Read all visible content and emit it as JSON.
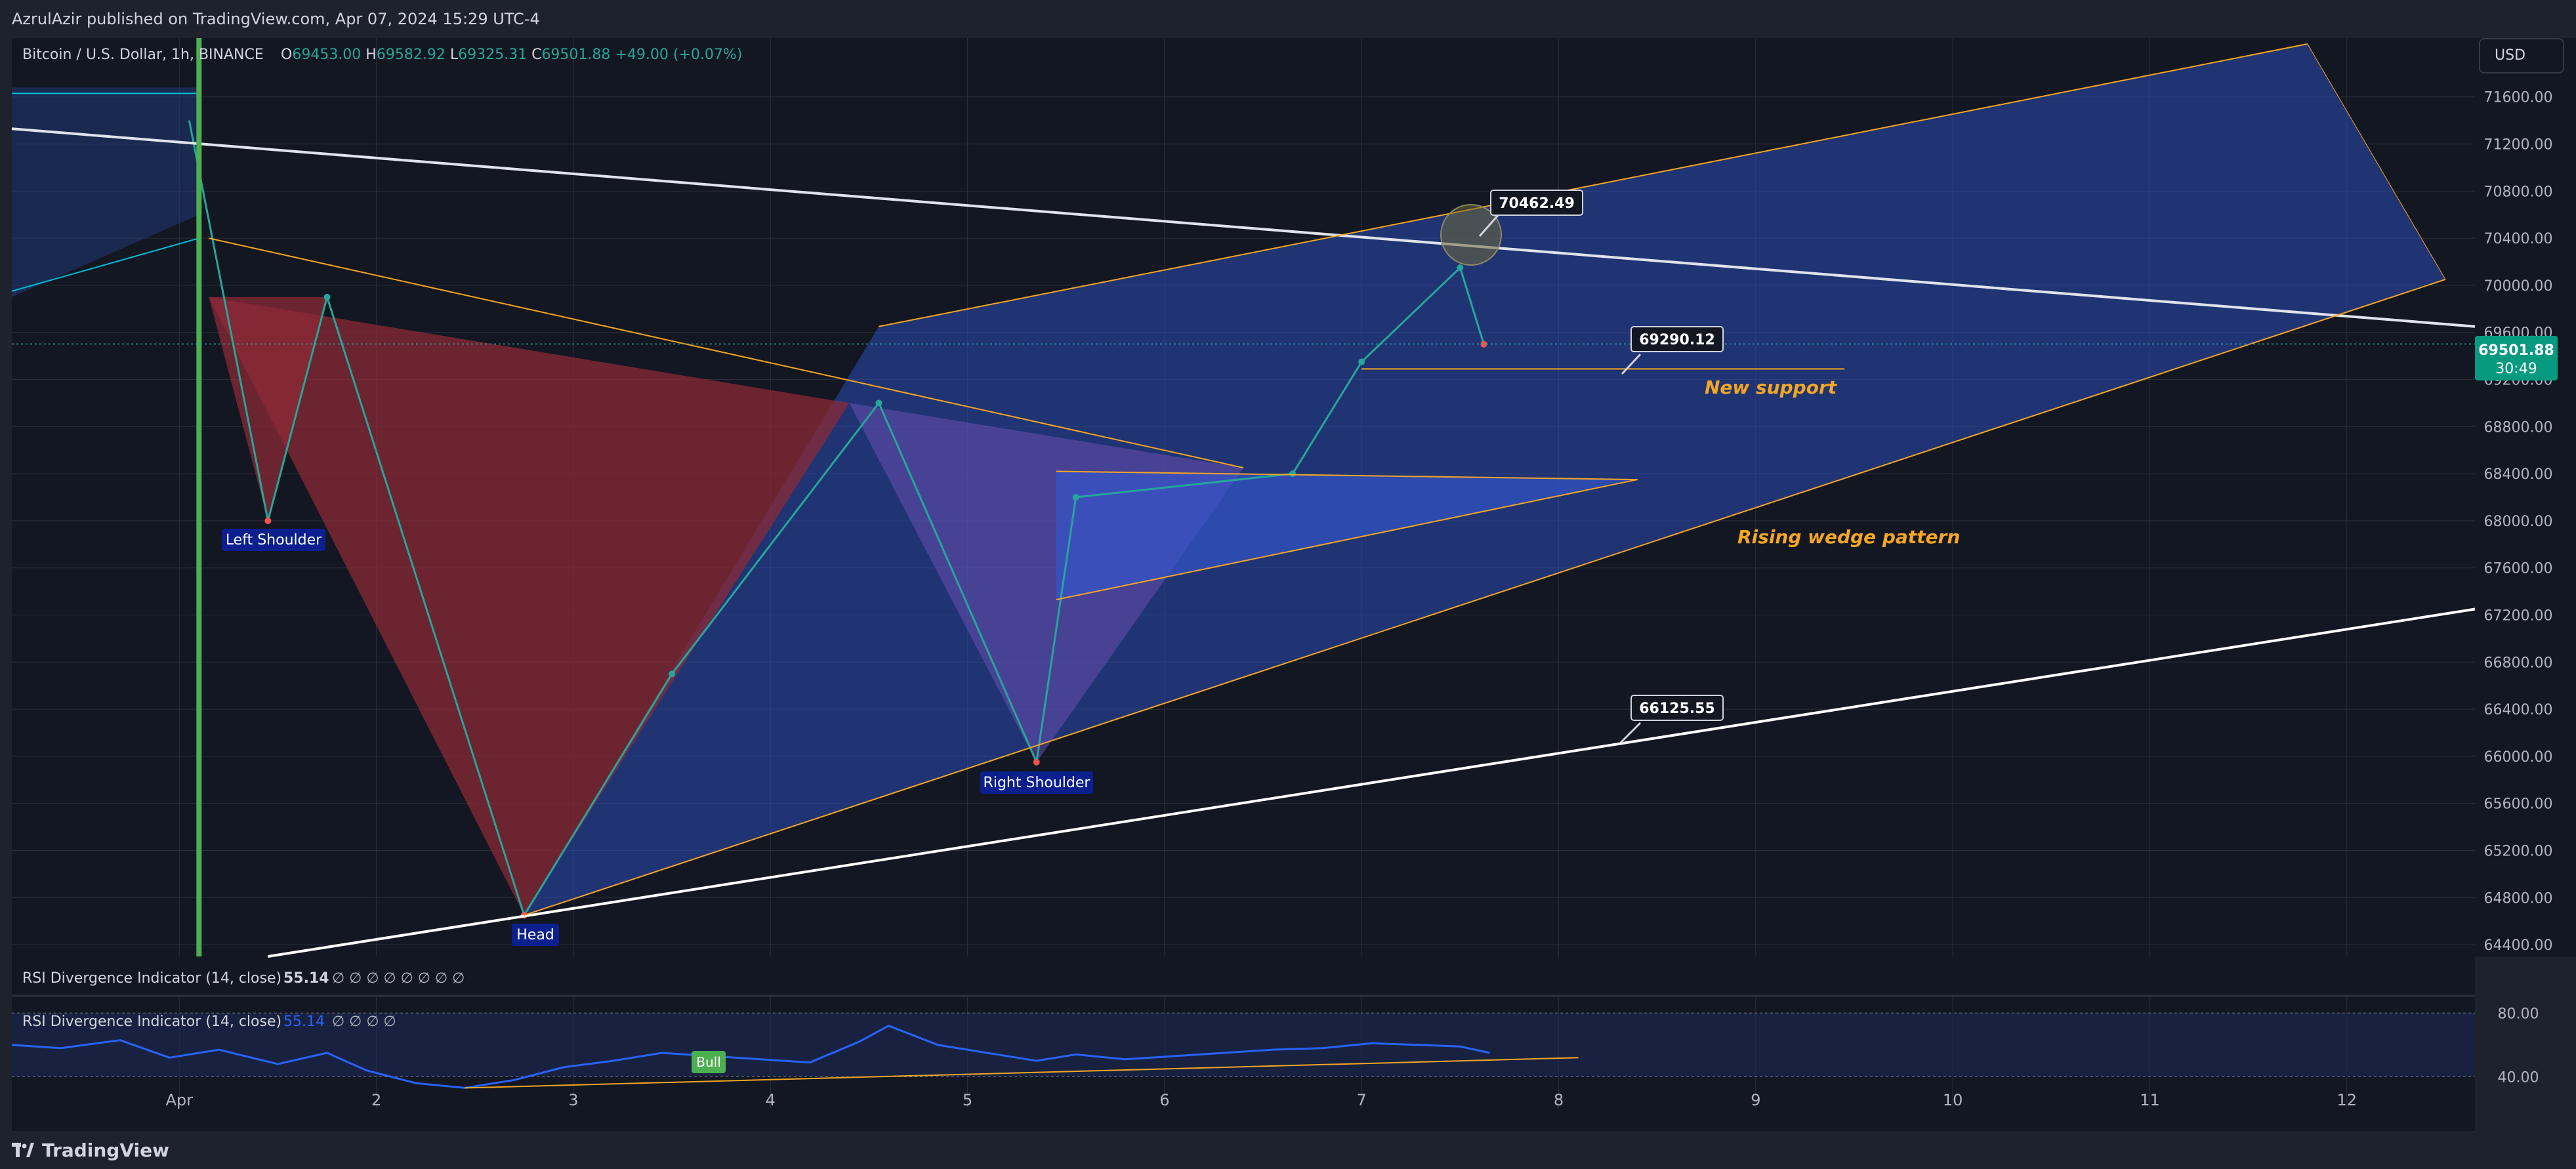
{
  "header": {
    "published_text": "AzrulAzir published on TradingView.com, Apr 07, 2024 15:29 UTC-4"
  },
  "symbol": {
    "title": "Bitcoin / U.S. Dollar, 1h, BINANCE",
    "open_label": "O",
    "open": "69453.00",
    "high_label": "H",
    "high": "69582.92",
    "low_label": "L",
    "low": "69325.31",
    "close_label": "C",
    "close": "69501.88",
    "change": "+49.00 (+0.07%)"
  },
  "currency_button": "USD",
  "price_tag": {
    "price": "69501.88",
    "countdown": "30:49"
  },
  "colors": {
    "background": "#131722",
    "frame": "#1e222d",
    "grid": "#2a2e39",
    "up": "#26a69a",
    "down": "#ef5350",
    "rsi_line": "#2962ff",
    "trendline_orange": "#f5a623",
    "channel_fill": "#2b4db8",
    "pattern_red": "#8b2a35",
    "label_bg": "#0b1f8f",
    "green_vline": "#4caf50"
  },
  "chart_data": {
    "type": "candlestick",
    "symbol": "Bitcoin / U.S. Dollar",
    "interval": "1h",
    "exchange": "BINANCE",
    "x_axis_labels": [
      "Apr",
      "2",
      "3",
      "4",
      "5",
      "6",
      "7",
      "8",
      "9",
      "10",
      "11",
      "12"
    ],
    "x_axis_days": [
      1,
      2,
      3,
      4,
      5,
      6,
      7,
      8,
      9,
      10,
      11,
      12
    ],
    "x_range_days": [
      0.15,
      12.65
    ],
    "y_axis_labels": [
      "71600.00",
      "71200.00",
      "70800.00",
      "70400.00",
      "70000.00",
      "69600.00",
      "69200.00",
      "68800.00",
      "68400.00",
      "68000.00",
      "67600.00",
      "67200.00",
      "66800.00",
      "66400.00",
      "66000.00",
      "65600.00",
      "65200.00",
      "64800.00",
      "64400.00"
    ],
    "y_range": [
      64300,
      72100
    ],
    "grid": true,
    "key_points": [
      {
        "day": 1.05,
        "price": 71400
      },
      {
        "day": 1.45,
        "price": 68000
      },
      {
        "day": 1.75,
        "price": 69900
      },
      {
        "day": 2.75,
        "price": 64650
      },
      {
        "day": 3.5,
        "price": 66700
      },
      {
        "day": 4.55,
        "price": 69000
      },
      {
        "day": 5.35,
        "price": 65950
      },
      {
        "day": 5.55,
        "price": 68200
      },
      {
        "day": 6.65,
        "price": 68400
      },
      {
        "day": 7.0,
        "price": 69350
      },
      {
        "day": 7.5,
        "price": 70150
      },
      {
        "day": 7.62,
        "price": 69500
      }
    ],
    "annotations": {
      "left_shoulder": "Left Shoulder",
      "head": "Head",
      "right_shoulder": "Right Shoulder",
      "new_support": "New support",
      "rising_wedge": "Rising wedge pattern",
      "callout_top": "70462.49",
      "callout_support": "69290.12",
      "callout_bottom": "66125.55"
    },
    "rsi": {
      "label": "RSI Divergence Indicator (14, close)",
      "value": "55.14",
      "placeholders": "∅ ∅ ∅ ∅ ∅ ∅ ∅ ∅",
      "placeholders_short": "∅ ∅ ∅ ∅",
      "levels": [
        "80.00",
        "40.00"
      ],
      "bull_label": "Bull",
      "x": [
        0.15,
        0.4,
        0.7,
        0.95,
        1.2,
        1.5,
        1.75,
        1.95,
        2.2,
        2.45,
        2.7,
        2.95,
        3.2,
        3.45,
        3.7,
        3.95,
        4.2,
        4.45,
        4.6,
        4.85,
        5.1,
        5.35,
        5.55,
        5.8,
        6.05,
        6.3,
        6.55,
        6.8,
        7.05,
        7.3,
        7.5,
        7.65
      ],
      "values": [
        60,
        58,
        63,
        52,
        57,
        48,
        55,
        44,
        36,
        33,
        38,
        46,
        50,
        55,
        53,
        51,
        49,
        62,
        72,
        60,
        55,
        50,
        54,
        51,
        53,
        55,
        57,
        58,
        61,
        60,
        59,
        55
      ]
    }
  },
  "footer": {
    "brand": "TradingView"
  }
}
